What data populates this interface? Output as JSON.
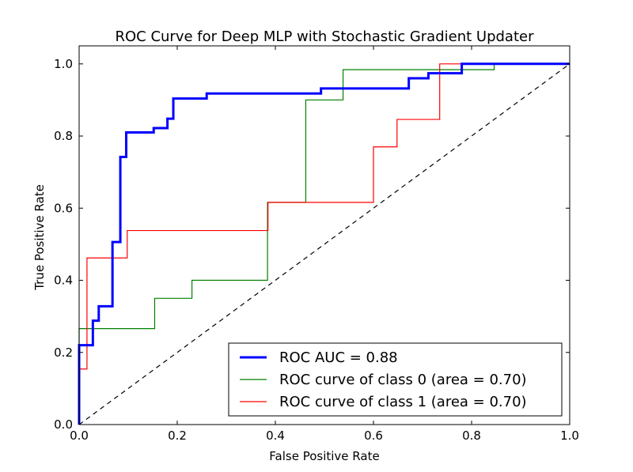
{
  "chart_data": {
    "type": "line",
    "title": "ROC Curve for Deep MLP with Stochastic Gradient Updater",
    "xlabel": "False Positive Rate",
    "ylabel": "True Positive Rate",
    "xlim": [
      0,
      1
    ],
    "ylim": [
      0,
      1.05
    ],
    "xticks": [
      0,
      0.2,
      0.4,
      0.6,
      0.8,
      1
    ],
    "yticks": [
      0,
      0.2,
      0.4,
      0.6,
      0.8,
      1
    ],
    "xtick_labels": [
      "0.0",
      "0.2",
      "0.4",
      "0.6",
      "0.8",
      "1.0"
    ],
    "ytick_labels": [
      "0.0",
      "0.2",
      "0.4",
      "0.6",
      "0.8",
      "1.0"
    ],
    "grid": false,
    "legend_position": "lower right",
    "series": [
      {
        "name": "ROC AUC = 0.88",
        "color": "#0000ff",
        "line_width": "thick",
        "x": [
          0,
          0,
          0.028,
          0.028,
          0.04,
          0.04,
          0.068,
          0.068,
          0.084,
          0.084,
          0.096,
          0.096,
          0.152,
          0.152,
          0.18,
          0.18,
          0.192,
          0.192,
          0.26,
          0.26,
          0.493,
          0.493,
          0.672,
          0.672,
          0.712,
          0.712,
          0.78,
          0.78,
          1.0
        ],
        "y": [
          0,
          0.22,
          0.22,
          0.288,
          0.288,
          0.328,
          0.328,
          0.506,
          0.506,
          0.742,
          0.742,
          0.81,
          0.81,
          0.822,
          0.822,
          0.848,
          0.848,
          0.904,
          0.904,
          0.918,
          0.918,
          0.932,
          0.932,
          0.96,
          0.96,
          0.974,
          0.974,
          1.0,
          1.0
        ]
      },
      {
        "name": "ROC curve of class 0 (area = 0.70)",
        "color": "#008000",
        "line_width": "thin",
        "x": [
          0,
          0,
          0.154,
          0.154,
          0.23,
          0.23,
          0.384,
          0.384,
          0.462,
          0.462,
          0.538,
          0.538,
          0.846,
          0.846,
          1.0
        ],
        "y": [
          0,
          0.266,
          0.266,
          0.35,
          0.35,
          0.4,
          0.4,
          0.616,
          0.616,
          0.9,
          0.9,
          0.984,
          0.984,
          1.0,
          1.0
        ]
      },
      {
        "name": "ROC curve of class 1 (area = 0.70)",
        "color": "#ff0000",
        "line_width": "thin",
        "x": [
          0,
          0,
          0.016,
          0.016,
          0.098,
          0.098,
          0.385,
          0.385,
          0.6,
          0.6,
          0.648,
          0.648,
          0.735,
          0.735,
          1.0
        ],
        "y": [
          0,
          0.154,
          0.154,
          0.462,
          0.462,
          0.538,
          0.538,
          0.616,
          0.616,
          0.77,
          0.77,
          0.846,
          0.846,
          1.0,
          1.0
        ]
      },
      {
        "name": "",
        "color": "#000000",
        "line_style": "dashed",
        "x": [
          0,
          1
        ],
        "y": [
          0,
          1
        ]
      }
    ]
  }
}
